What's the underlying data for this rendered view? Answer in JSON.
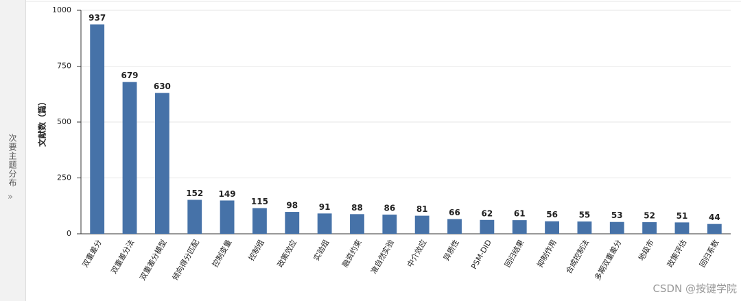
{
  "sidebar": {
    "title": "次要主题分布"
  },
  "watermark": "CSDN @按键学院",
  "chart_data": {
    "type": "bar",
    "y_label": "文献数（篇）",
    "categories": [
      "双重差分",
      "双重差分法",
      "双重差分模型",
      "倾向得分匹配",
      "控制变量",
      "控制组",
      "政策效应",
      "实验组",
      "融资约束",
      "准自然实验",
      "中介效应",
      "异质性",
      "PSM-DID",
      "回归结果",
      "抑制作用",
      "合成控制法",
      "多期双重差分",
      "地级市",
      "政策评估",
      "回归系数"
    ],
    "values": [
      937,
      679,
      630,
      152,
      149,
      115,
      98,
      91,
      88,
      86,
      81,
      66,
      62,
      61,
      56,
      55,
      53,
      52,
      51,
      44
    ],
    "color": "#4672a8",
    "ylim": [
      0,
      1000
    ],
    "yticks": [
      0,
      250,
      500,
      750,
      1000
    ],
    "grid": true
  }
}
